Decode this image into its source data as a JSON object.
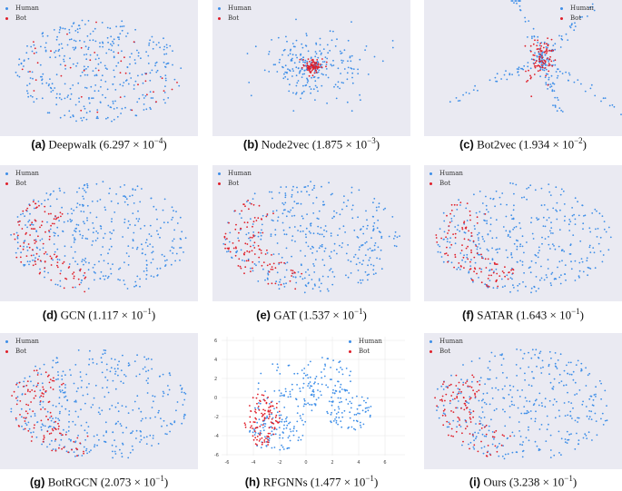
{
  "legend": {
    "human": "Human",
    "bot": "Bot"
  },
  "colors": {
    "human": "#3d8ee8",
    "bot": "#e01f2a",
    "panel_bg": "#eaeaf2"
  },
  "panels": [
    {
      "tag": "(a)",
      "name": "Deepwalk",
      "mant": "6.297",
      "exp": "−4",
      "shape": "deepwalk"
    },
    {
      "tag": "(b)",
      "name": "Node2vec",
      "mant": "1.875",
      "exp": "−3",
      "shape": "node2vec"
    },
    {
      "tag": "(c)",
      "name": "Bot2vec",
      "mant": "1.934",
      "exp": "−2",
      "shape": "bot2vec"
    },
    {
      "tag": "(d)",
      "name": "GCN",
      "mant": "1.117",
      "exp": "−1",
      "shape": "blob"
    },
    {
      "tag": "(e)",
      "name": "GAT",
      "mant": "1.537",
      "exp": "−1",
      "shape": "blob"
    },
    {
      "tag": "(f)",
      "name": "SATAR",
      "mant": "1.643",
      "exp": "−1",
      "shape": "swirl"
    },
    {
      "tag": "(g)",
      "name": "BotRGCN",
      "mant": "2.073",
      "exp": "−1",
      "shape": "blob"
    },
    {
      "tag": "(h)",
      "name": "RFGNNs",
      "mant": "1.477",
      "exp": "−1",
      "shape": "rfgnn"
    },
    {
      "tag": "(i)",
      "name": "Ours",
      "mant": "3.238",
      "exp": "−1",
      "shape": "swirl"
    }
  ],
  "rfgnn_axes": {
    "x_ticks": [
      "-6",
      "-4",
      "-2",
      "0",
      "2",
      "4",
      "6"
    ],
    "y_ticks": [
      "6",
      "4",
      "2",
      "0",
      "-2",
      "-4",
      "-6"
    ]
  },
  "chart_data": {
    "type": "scatter",
    "series": [
      {
        "name": "Human"
      },
      {
        "name": "Bot"
      }
    ],
    "panels": [
      "(a) Deepwalk (6.297 × 10^−4)",
      "(b) Node2vec (1.875 × 10^−3)",
      "(c) Bot2vec (1.934 × 10^−2)",
      "(d) GCN (1.117 × 10^−1)",
      "(e) GAT (1.537 × 10^−1)",
      "(f) SATAR (1.643 × 10^−1)",
      "(g) BotRGCN (2.073 × 10^−1)",
      "(h) RFGNNs (1.477 × 10^−1)",
      "(i) Ours (3.238 × 10^−1)"
    ],
    "grid": false
  }
}
